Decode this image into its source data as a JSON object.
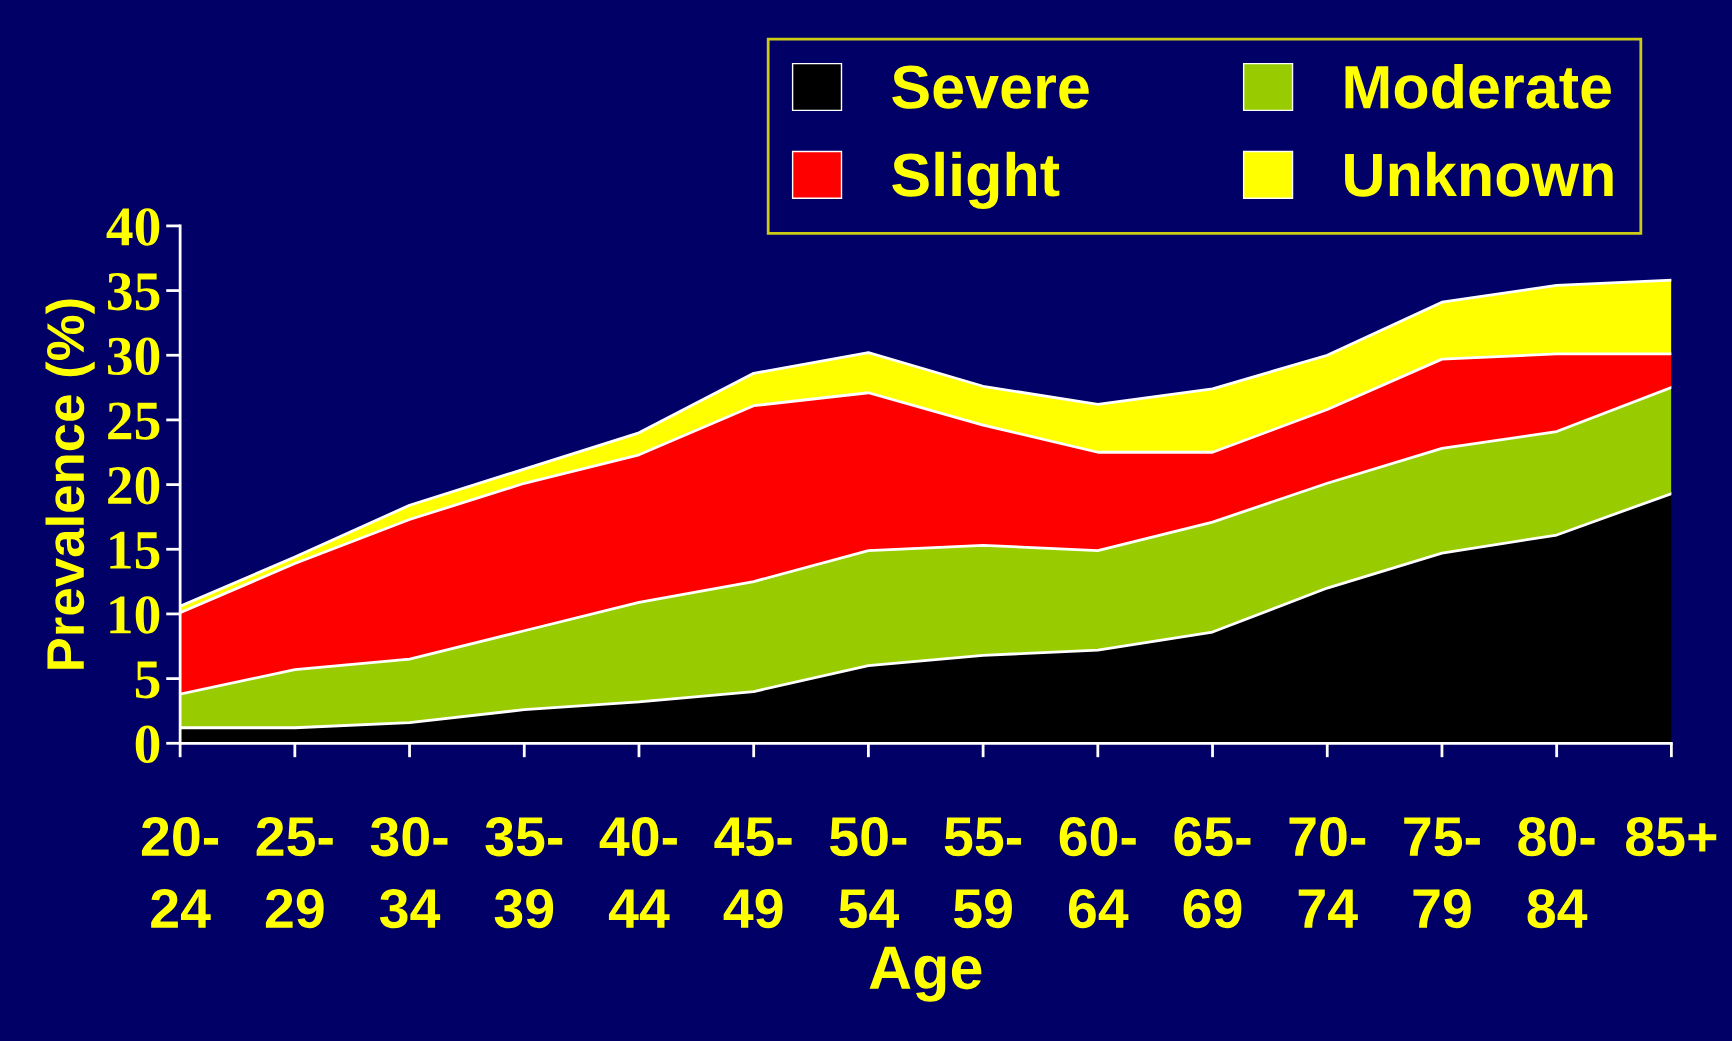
{
  "chart_data": {
    "type": "area",
    "stacked": true,
    "xlabel": "Age",
    "ylabel": "Prevalence (%)",
    "categories": [
      "20-\n24",
      "25-\n29",
      "30-\n34",
      "35-\n39",
      "40-\n44",
      "45-\n49",
      "50-\n54",
      "55-\n59",
      "60-\n64",
      "65-\n69",
      "70-\n74",
      "75-\n79",
      "80-\n84",
      "85+"
    ],
    "series": [
      {
        "name": "Severe",
        "color": "#000000",
        "values": [
          1.2,
          1.2,
          1.6,
          2.6,
          3.2,
          4.0,
          6.0,
          6.8,
          7.2,
          8.6,
          12.0,
          14.7,
          16.1,
          19.3
        ]
      },
      {
        "name": "Moderate",
        "color": "#99cc00",
        "values": [
          2.6,
          4.5,
          4.9,
          6.1,
          7.7,
          8.5,
          8.9,
          8.5,
          7.7,
          8.5,
          8.1,
          8.1,
          8.0,
          8.2
        ]
      },
      {
        "name": "Slight",
        "color": "#ff0000",
        "values": [
          6.3,
          8.2,
          10.8,
          11.4,
          11.4,
          13.6,
          12.2,
          9.3,
          7.6,
          5.4,
          5.7,
          6.9,
          6.0,
          2.6
        ]
      },
      {
        "name": "Unknown",
        "color": "#ffff00",
        "values": [
          0.5,
          0.5,
          1.1,
          1.1,
          1.7,
          2.5,
          3.1,
          3.0,
          3.7,
          4.9,
          4.2,
          4.4,
          5.3,
          5.7
        ]
      }
    ],
    "ylim": [
      0,
      40
    ],
    "yticks": [
      0,
      5,
      10,
      15,
      20,
      25,
      30,
      35,
      40
    ],
    "grid": false,
    "legend": "top right"
  }
}
